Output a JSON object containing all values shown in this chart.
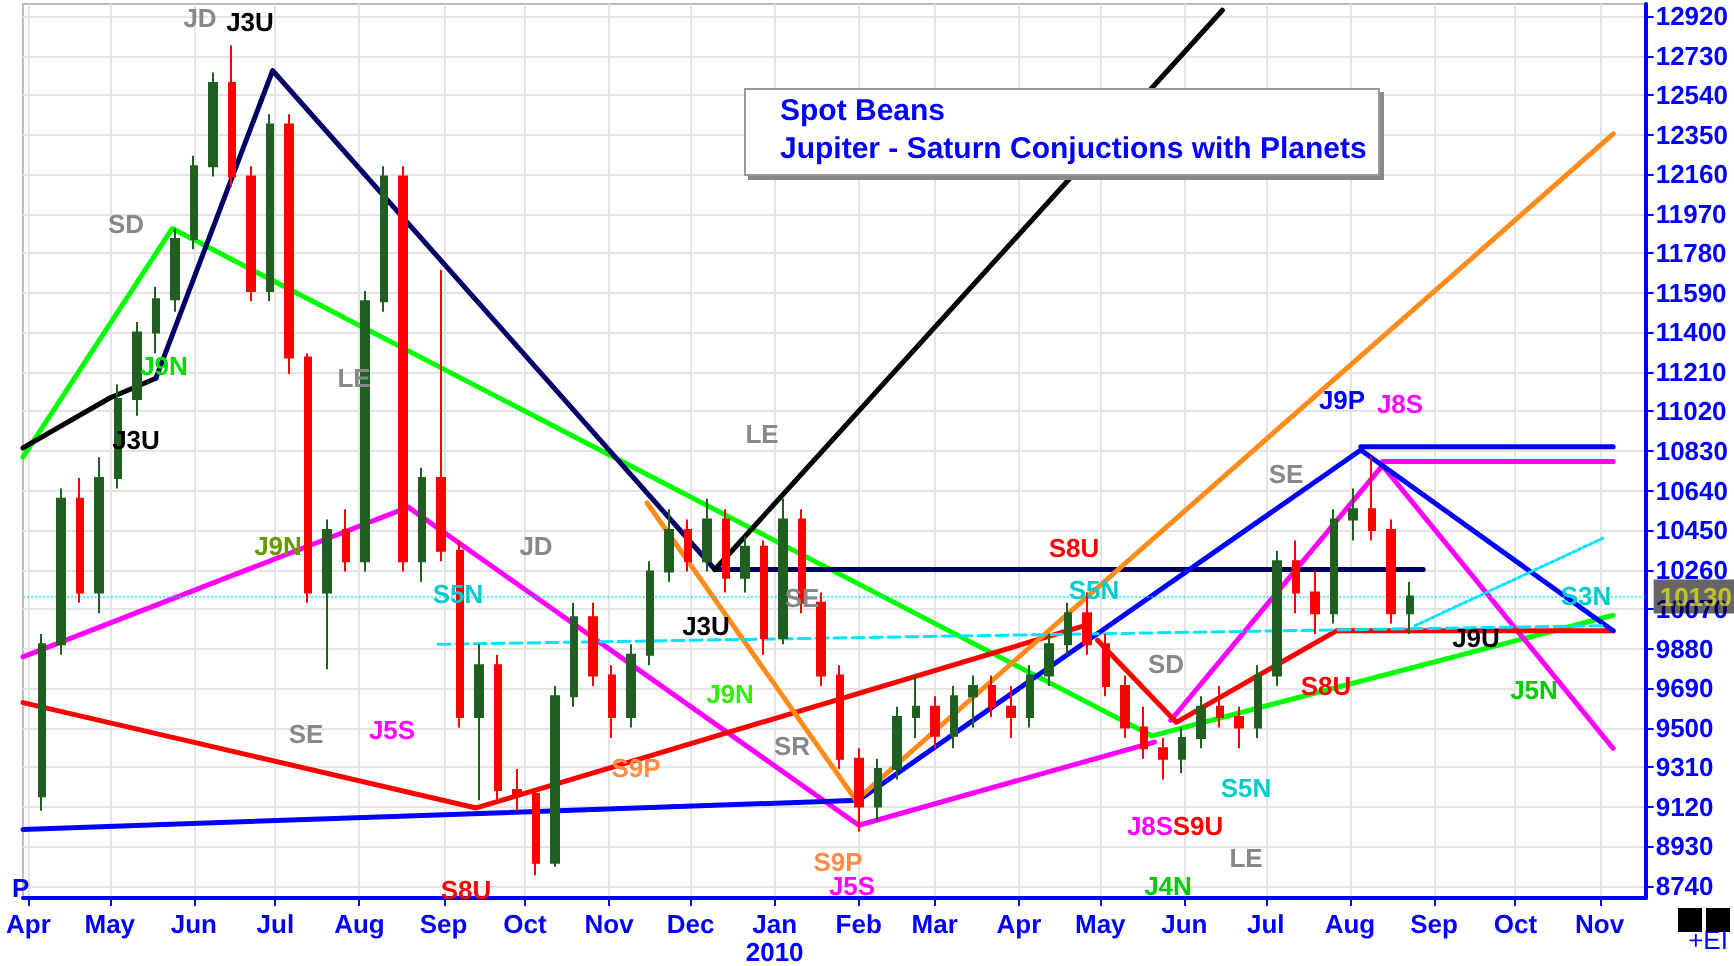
{
  "chart_data": {
    "type": "candlestick",
    "title": "Spot Beans",
    "subtitle": "Jupiter - Saturn Conjuctions with Planets",
    "x": [
      "2009-04-06",
      "2009-04-13",
      "2009-04-20",
      "2009-04-27",
      "2009-05-04",
      "2009-05-11",
      "2009-05-18",
      "2009-05-25",
      "2009-06-01",
      "2009-06-08",
      "2009-06-15",
      "2009-06-22",
      "2009-06-29",
      "2009-07-06",
      "2009-07-13",
      "2009-07-20",
      "2009-07-27",
      "2009-08-03",
      "2009-08-10",
      "2009-08-17",
      "2009-08-24",
      "2009-08-31",
      "2009-09-07",
      "2009-09-14",
      "2009-09-21",
      "2009-09-28",
      "2009-10-05",
      "2009-10-12",
      "2009-10-19",
      "2009-10-26",
      "2009-11-02",
      "2009-11-09",
      "2009-11-16",
      "2009-11-23",
      "2009-11-30",
      "2009-12-07",
      "2009-12-14",
      "2009-12-21",
      "2009-12-28",
      "2010-01-04",
      "2010-01-11",
      "2010-01-18",
      "2010-01-25",
      "2010-02-01",
      "2010-02-08",
      "2010-02-15",
      "2010-02-22",
      "2010-03-01",
      "2010-03-08",
      "2010-03-15",
      "2010-03-22",
      "2010-03-29",
      "2010-04-05",
      "2010-04-12",
      "2010-04-19",
      "2010-04-26",
      "2010-05-03",
      "2010-05-10",
      "2010-05-17",
      "2010-05-24",
      "2010-05-31",
      "2010-06-07",
      "2010-06-14",
      "2010-06-21",
      "2010-06-28",
      "2010-07-05",
      "2010-07-12",
      "2010-07-19",
      "2010-07-26",
      "2010-08-02",
      "2010-08-09",
      "2010-08-16",
      "2010-08-23"
    ],
    "ohlc": [
      [
        9170,
        9950,
        9100,
        9900
      ],
      [
        9900,
        10650,
        9850,
        10600
      ],
      [
        10600,
        10700,
        10100,
        10150
      ],
      [
        10150,
        10800,
        10050,
        10700
      ],
      [
        10700,
        11150,
        10650,
        11080
      ],
      [
        11080,
        11450,
        11000,
        11400
      ],
      [
        11400,
        11620,
        11300,
        11560
      ],
      [
        11560,
        11900,
        11500,
        11850
      ],
      [
        11850,
        12250,
        11800,
        12200
      ],
      [
        12200,
        12650,
        12150,
        12600
      ],
      [
        12600,
        12780,
        12100,
        12150
      ],
      [
        12150,
        12200,
        11550,
        11600
      ],
      [
        11600,
        12450,
        11550,
        12400
      ],
      [
        12400,
        12450,
        11200,
        11280
      ],
      [
        11280,
        11300,
        10100,
        10150
      ],
      [
        10150,
        10500,
        9780,
        10450
      ],
      [
        10450,
        10550,
        10250,
        10300
      ],
      [
        10300,
        11600,
        10250,
        11550
      ],
      [
        11550,
        12200,
        11500,
        12150
      ],
      [
        12150,
        12200,
        10250,
        10300
      ],
      [
        10300,
        10750,
        10200,
        10700
      ],
      [
        10700,
        11700,
        10300,
        10350
      ],
      [
        10350,
        10400,
        9500,
        9550
      ],
      [
        9550,
        9900,
        9150,
        9800
      ],
      [
        9800,
        9850,
        9150,
        9200
      ],
      [
        9200,
        9300,
        9100,
        9180
      ],
      [
        9180,
        9200,
        8790,
        8850
      ],
      [
        8850,
        9700,
        8830,
        9650
      ],
      [
        9650,
        10100,
        9600,
        10030
      ],
      [
        10030,
        10100,
        9700,
        9750
      ],
      [
        9750,
        9800,
        9450,
        9550
      ],
      [
        9550,
        9900,
        9500,
        9850
      ],
      [
        9850,
        10300,
        9800,
        10250
      ],
      [
        10250,
        10550,
        10200,
        10450
      ],
      [
        10450,
        10500,
        10250,
        10300
      ],
      [
        10300,
        10600,
        10250,
        10500
      ],
      [
        10500,
        10550,
        10150,
        10220
      ],
      [
        10220,
        10420,
        10150,
        10370
      ],
      [
        10370,
        10400,
        9850,
        9930
      ],
      [
        9930,
        10600,
        9900,
        10500
      ],
      [
        10500,
        10550,
        10050,
        10100
      ],
      [
        10100,
        10150,
        9700,
        9750
      ],
      [
        9750,
        9800,
        9300,
        9350
      ],
      [
        9350,
        9400,
        9000,
        9120
      ],
      [
        9120,
        9350,
        9050,
        9300
      ],
      [
        9300,
        9600,
        9250,
        9550
      ],
      [
        9550,
        9750,
        9450,
        9600
      ],
      [
        9600,
        9650,
        9400,
        9460
      ],
      [
        9460,
        9700,
        9400,
        9650
      ],
      [
        9650,
        9750,
        9500,
        9700
      ],
      [
        9700,
        9750,
        9550,
        9600
      ],
      [
        9600,
        9700,
        9450,
        9550
      ],
      [
        9550,
        9800,
        9500,
        9750
      ],
      [
        9750,
        9950,
        9700,
        9900
      ],
      [
        9900,
        10100,
        9850,
        10050
      ],
      [
        10050,
        10150,
        9850,
        9900
      ],
      [
        9900,
        9950,
        9650,
        9700
      ],
      [
        9700,
        9750,
        9450,
        9500
      ],
      [
        9500,
        9600,
        9350,
        9400
      ],
      [
        9400,
        9450,
        9250,
        9350
      ],
      [
        9350,
        9500,
        9280,
        9450
      ],
      [
        9450,
        9650,
        9400,
        9600
      ],
      [
        9600,
        9700,
        9500,
        9550
      ],
      [
        9550,
        9600,
        9400,
        9500
      ],
      [
        9500,
        9800,
        9450,
        9750
      ],
      [
        9750,
        10350,
        9700,
        10300
      ],
      [
        10300,
        10400,
        10050,
        10150
      ],
      [
        10150,
        10250,
        9950,
        10050
      ],
      [
        10050,
        10550,
        10000,
        10500
      ],
      [
        10500,
        10650,
        10400,
        10550
      ],
      [
        10550,
        10800,
        10400,
        10450
      ],
      [
        10450,
        10500,
        10000,
        10050
      ],
      [
        10050,
        10200,
        9950,
        10130
      ]
    ],
    "series": [
      {
        "type": "line",
        "color": "#00ff00",
        "x": [
          "2009-03-30",
          "2009-05-24",
          "2010-05-20",
          "2010-11-06"
        ],
        "values": [
          10800,
          11900,
          9460,
          10040
        ]
      },
      {
        "type": "line",
        "color": "#000000",
        "x": [
          "2009-03-30",
          "2009-05-01",
          "2009-05-18"
        ],
        "values": [
          10845,
          11085,
          11180
        ]
      },
      {
        "type": "line",
        "color": "#000066",
        "x": [
          "2009-05-18",
          "2009-06-30",
          "2009-12-10"
        ],
        "values": [
          11180,
          12660,
          10260
        ]
      },
      {
        "type": "line",
        "color": "#000066",
        "x": [
          "2009-12-10",
          "2010-08-28"
        ],
        "values": [
          10260,
          10260
        ]
      },
      {
        "type": "line",
        "color": "#000000",
        "x": [
          "2009-12-10",
          "2010-06-15"
        ],
        "values": [
          10260,
          12950
        ]
      },
      {
        "type": "line",
        "color": "#ff00ff",
        "x": [
          "2009-03-30",
          "2009-08-19",
          "2010-02-01",
          "2010-05-21"
        ],
        "values": [
          9840,
          10560,
          9030,
          9430
        ]
      },
      {
        "type": "line",
        "color": "#ff00ff",
        "x": [
          "2010-05-27",
          "2010-08-13",
          "2010-11-06"
        ],
        "values": [
          9535,
          10760,
          9400
        ]
      },
      {
        "type": "line",
        "color": "#ff00ff",
        "x": [
          "2010-08-13",
          "2010-11-06"
        ],
        "values": [
          10780,
          10780
        ]
      },
      {
        "type": "line",
        "color": "#ff0000",
        "x": [
          "2009-03-30",
          "2009-09-13",
          "2010-04-24"
        ],
        "values": [
          9620,
          9113,
          9985
        ]
      },
      {
        "type": "line",
        "color": "#ff0000",
        "x": [
          "2010-04-30",
          "2010-05-29",
          "2010-07-27",
          "2010-11-06"
        ],
        "values": [
          9920,
          9525,
          9965,
          9965
        ]
      },
      {
        "type": "line",
        "color": "#0000ff",
        "x": [
          "2009-03-30",
          "2010-02-01"
        ],
        "values": [
          9010,
          9150
        ]
      },
      {
        "type": "line",
        "color": "#0000ff",
        "x": [
          "2010-02-01",
          "2010-08-05",
          "2010-11-06"
        ],
        "values": [
          9150,
          10835,
          9965
        ]
      },
      {
        "type": "line",
        "color": "#0000ff",
        "x": [
          "2010-08-05",
          "2010-11-06"
        ],
        "values": [
          10850,
          10850
        ]
      },
      {
        "type": "line",
        "color": "#ff8c1a",
        "x": [
          "2009-11-15",
          "2010-01-31"
        ],
        "values": [
          10580,
          9150
        ]
      },
      {
        "type": "line",
        "color": "#ff8c1a",
        "x": [
          "2010-01-31",
          "2010-11-06"
        ],
        "values": [
          9150,
          12355
        ]
      },
      {
        "type": "line",
        "color": "#00e5ff",
        "line_style": "dashed",
        "x": [
          "2009-08-30",
          "2010-11-03"
        ],
        "values": [
          9900,
          9990
        ]
      },
      {
        "type": "line",
        "color": "#00e5ff",
        "line_style": "dotted",
        "x": [
          "2010-08-25",
          "2010-11-03"
        ],
        "values": [
          9990,
          10415
        ]
      }
    ],
    "annotations": [
      "JD",
      "J3U",
      "SD",
      "J9N",
      "J3U",
      "LE",
      "LE",
      "J9N",
      "SE",
      "J5S",
      "S5N",
      "JD",
      "S8U",
      "S9P",
      "J3U",
      "J9N",
      "SE",
      "SR",
      "S9P",
      "J5S",
      "P",
      "S8U",
      "S5N",
      "SD",
      "SE",
      "J9P",
      "J8S",
      "J8S",
      "S9U",
      "J4N",
      "S5N",
      "LE",
      "S8U",
      "J9U",
      "S3N",
      "J5N",
      "+EI"
    ],
    "ref_lines": [
      {
        "axis": "y",
        "value": 10130,
        "label": "10130"
      }
    ],
    "marker": "none",
    "grid": true,
    "xlim": [
      "2009-03-30",
      "2010-11-18"
    ],
    "xticks": [
      {
        "value": "2009-04-01",
        "label": "Apr"
      },
      {
        "value": "2009-05-01",
        "label": "May"
      },
      {
        "value": "2009-06-01",
        "label": "Jun"
      },
      {
        "value": "2009-07-01",
        "label": "Jul"
      },
      {
        "value": "2009-08-01",
        "label": "Aug"
      },
      {
        "value": "2009-09-01",
        "label": "Sep"
      },
      {
        "value": "2009-10-01",
        "label": "Oct"
      },
      {
        "value": "2009-11-01",
        "label": "Nov"
      },
      {
        "value": "2009-12-01",
        "label": "Dec"
      },
      {
        "value": "2010-01-01",
        "label": "Jan\n2010"
      },
      {
        "value": "2010-02-01",
        "label": "Feb"
      },
      {
        "value": "2010-03-01",
        "label": "Mar"
      },
      {
        "value": "2010-04-01",
        "label": "Apr"
      },
      {
        "value": "2010-05-01",
        "label": "May"
      },
      {
        "value": "2010-06-01",
        "label": "Jun"
      },
      {
        "value": "2010-07-01",
        "label": "Jul"
      },
      {
        "value": "2010-08-01",
        "label": "Aug"
      },
      {
        "value": "2010-09-01",
        "label": "Sep"
      },
      {
        "value": "2010-10-01",
        "label": "Oct"
      },
      {
        "value": "2010-11-01",
        "label": "Nov"
      }
    ],
    "ylim": [
      8680,
      12980
    ],
    "yticks": [
      8740,
      8930,
      9120,
      9310,
      9500,
      9690,
      9880,
      10070,
      10260,
      10450,
      10640,
      10830,
      11020,
      11210,
      11400,
      11590,
      11780,
      11970,
      12160,
      12350,
      12540,
      12730,
      12920
    ]
  }
}
